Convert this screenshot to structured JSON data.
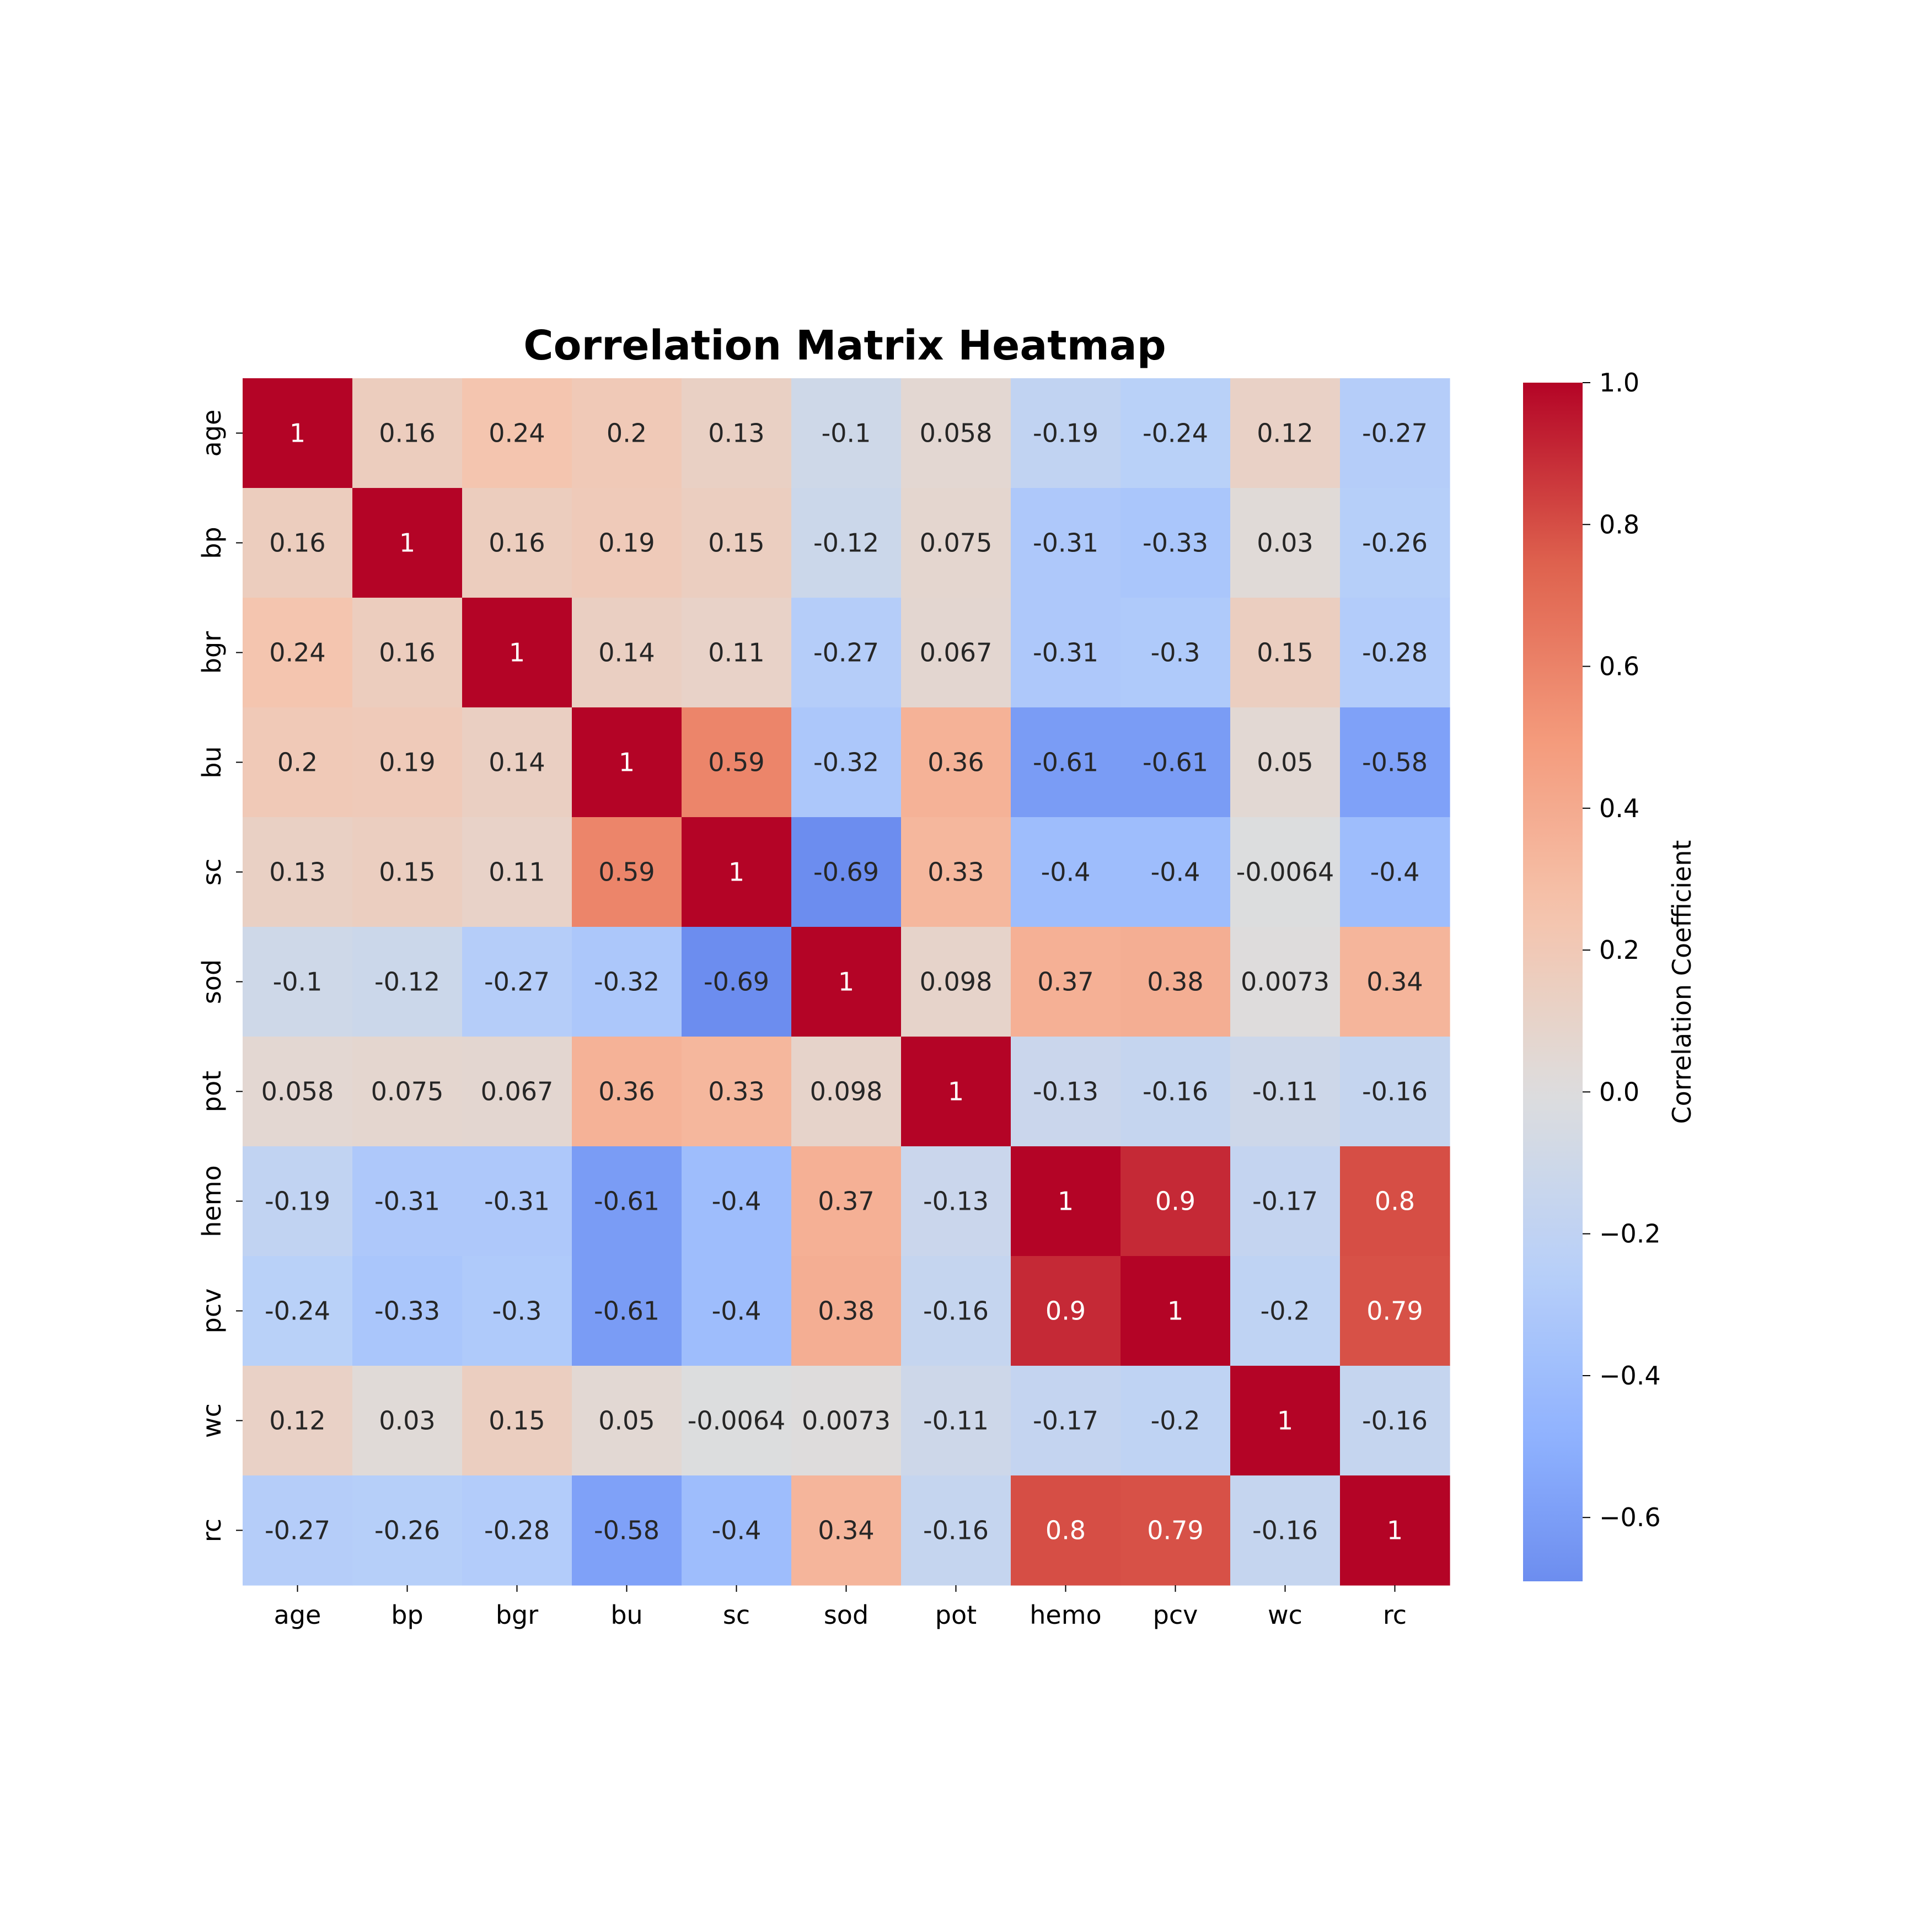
{
  "chart_data": {
    "type": "heatmap",
    "title": "Correlation Matrix Heatmap",
    "xlabel": "",
    "ylabel": "",
    "labels": [
      "age",
      "bp",
      "bgr",
      "bu",
      "sc",
      "sod",
      "pot",
      "hemo",
      "pcv",
      "wc",
      "rc"
    ],
    "matrix": [
      [
        1,
        0.16,
        0.24,
        0.2,
        0.13,
        -0.1,
        0.058,
        -0.19,
        -0.24,
        0.12,
        -0.27
      ],
      [
        0.16,
        1,
        0.16,
        0.19,
        0.15,
        -0.12,
        0.075,
        -0.31,
        -0.33,
        0.03,
        -0.26
      ],
      [
        0.24,
        0.16,
        1,
        0.14,
        0.11,
        -0.27,
        0.067,
        -0.31,
        -0.3,
        0.15,
        -0.28
      ],
      [
        0.2,
        0.19,
        0.14,
        1,
        0.59,
        -0.32,
        0.36,
        -0.61,
        -0.61,
        0.05,
        -0.58
      ],
      [
        0.13,
        0.15,
        0.11,
        0.59,
        1,
        -0.69,
        0.33,
        -0.4,
        -0.4,
        -0.0064,
        -0.4
      ],
      [
        -0.1,
        -0.12,
        -0.27,
        -0.32,
        -0.69,
        1,
        0.098,
        0.37,
        0.38,
        0.0073,
        0.34
      ],
      [
        0.058,
        0.075,
        0.067,
        0.36,
        0.33,
        0.098,
        1,
        -0.13,
        -0.16,
        -0.11,
        -0.16
      ],
      [
        -0.19,
        -0.31,
        -0.31,
        -0.61,
        -0.4,
        0.37,
        -0.13,
        1,
        0.9,
        -0.17,
        0.8
      ],
      [
        -0.24,
        -0.33,
        -0.3,
        -0.61,
        -0.4,
        0.38,
        -0.16,
        0.9,
        1,
        -0.2,
        0.79
      ],
      [
        0.12,
        0.03,
        0.15,
        0.05,
        -0.0064,
        0.0073,
        -0.11,
        -0.17,
        -0.2,
        1,
        -0.16
      ],
      [
        -0.27,
        -0.26,
        -0.28,
        -0.58,
        -0.4,
        0.34,
        -0.16,
        0.8,
        0.79,
        -0.16,
        1
      ]
    ],
    "colormap": "coolwarm",
    "colorbar": {
      "label": "Correlation Coefficient",
      "range": [
        -0.69,
        1.0
      ],
      "ticks": [
        1.0,
        0.8,
        0.6,
        0.4,
        0.2,
        0.0,
        -0.2,
        -0.4,
        -0.6
      ],
      "tick_labels": [
        "1.0",
        "0.8",
        "0.6",
        "0.4",
        "0.2",
        "0.0",
        "−0.2",
        "−0.4",
        "−0.6"
      ]
    },
    "annotations": true,
    "grid": false,
    "legend": "colorbar-right"
  }
}
